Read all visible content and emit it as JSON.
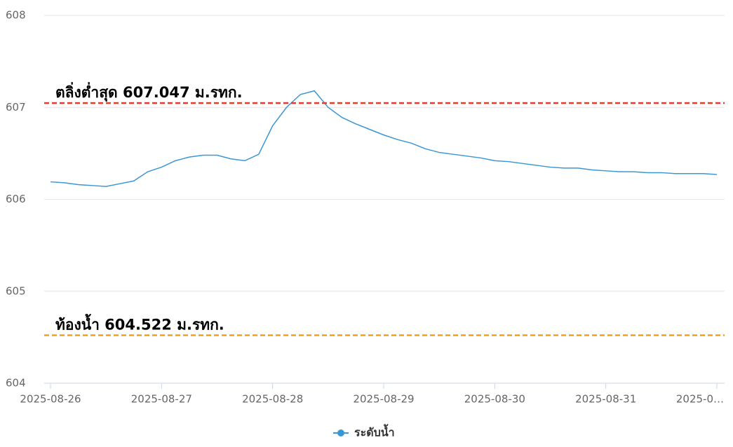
{
  "chart_data": {
    "type": "line",
    "categories": [
      "2025-08-26",
      null,
      null,
      null,
      null,
      null,
      null,
      null,
      "2025-08-27",
      null,
      null,
      null,
      null,
      null,
      null,
      null,
      "2025-08-28",
      null,
      null,
      null,
      null,
      null,
      null,
      null,
      "2025-08-29",
      null,
      null,
      null,
      null,
      null,
      null,
      null,
      "2025-08-30",
      null,
      null,
      null,
      null,
      null,
      null,
      null,
      "2025-08-31",
      null,
      null,
      null,
      null,
      null,
      null,
      null,
      "2025-0…"
    ],
    "series": [
      {
        "name": "ระดับน้ำ",
        "color": "#3a97d4",
        "values": [
          606.19,
          606.18,
          606.16,
          606.15,
          606.14,
          606.17,
          606.2,
          606.3,
          606.35,
          606.42,
          606.46,
          606.48,
          606.48,
          606.44,
          606.42,
          606.49,
          606.8,
          607.0,
          607.14,
          607.18,
          607.0,
          606.89,
          606.82,
          606.76,
          606.7,
          606.65,
          606.61,
          606.55,
          606.51,
          606.49,
          606.47,
          606.45,
          606.42,
          606.41,
          606.39,
          606.37,
          606.35,
          606.34,
          606.34,
          606.32,
          606.31,
          606.3,
          606.3,
          606.29,
          606.29,
          606.28,
          606.28,
          606.28,
          606.27
        ]
      }
    ],
    "reference_lines": [
      {
        "value": 607.047,
        "label": "ตลิ่งต่ำสุด 607.047 ม.รทก.",
        "color": "#e03c31"
      },
      {
        "value": 604.522,
        "label": "ท้องน้ำ 604.522 ม.รทก.",
        "color": "#f0a11c"
      }
    ],
    "ylim": [
      604,
      608
    ],
    "yticks": [
      604,
      605,
      606,
      607,
      608
    ],
    "grid": true,
    "legend": "bottom"
  }
}
